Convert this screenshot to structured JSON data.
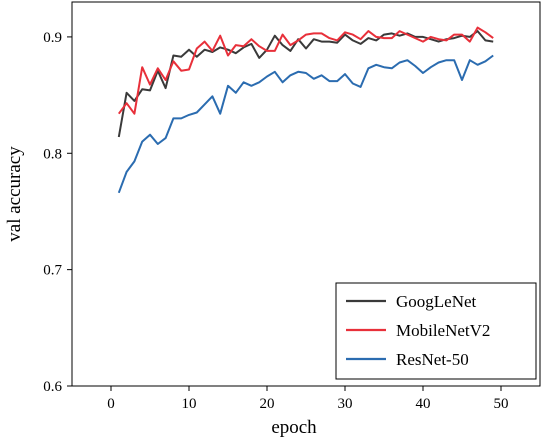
{
  "chart_data": {
    "type": "line",
    "title": "",
    "xlabel": "epoch",
    "ylabel": "val accuracy",
    "xlim": [
      -5,
      55
    ],
    "ylim": [
      0.6,
      0.93
    ],
    "xticks": [
      0,
      10,
      20,
      30,
      40,
      50
    ],
    "yticks": [
      0.6,
      0.7,
      0.8,
      0.9
    ],
    "ytick_labels": [
      "0.6",
      "0.7",
      "0.8",
      "0.9"
    ],
    "grid": false,
    "legend_position": "bottom-right",
    "x": [
      1,
      2,
      3,
      4,
      5,
      6,
      7,
      8,
      9,
      10,
      11,
      12,
      13,
      14,
      15,
      16,
      17,
      18,
      19,
      20,
      21,
      22,
      23,
      24,
      25,
      26,
      27,
      28,
      29,
      30,
      31,
      32,
      33,
      34,
      35,
      36,
      37,
      38,
      39,
      40,
      41,
      42,
      43,
      44,
      45,
      46,
      47,
      48,
      49
    ],
    "series": [
      {
        "name": "GoogLeNet",
        "color": "#3a3a3a",
        "values": [
          0.814,
          0.852,
          0.845,
          0.855,
          0.854,
          0.871,
          0.856,
          0.884,
          0.883,
          0.889,
          0.883,
          0.889,
          0.887,
          0.891,
          0.889,
          0.886,
          0.891,
          0.894,
          0.882,
          0.889,
          0.901,
          0.893,
          0.888,
          0.898,
          0.89,
          0.898,
          0.896,
          0.896,
          0.895,
          0.902,
          0.897,
          0.894,
          0.899,
          0.897,
          0.902,
          0.903,
          0.901,
          0.903,
          0.9,
          0.9,
          0.898,
          0.896,
          0.898,
          0.899,
          0.901,
          0.9,
          0.905,
          0.897,
          0.896
        ]
      },
      {
        "name": "MobileNetV2",
        "color": "#e8303a",
        "values": [
          0.834,
          0.843,
          0.834,
          0.874,
          0.859,
          0.873,
          0.863,
          0.879,
          0.871,
          0.872,
          0.89,
          0.896,
          0.888,
          0.901,
          0.884,
          0.893,
          0.892,
          0.898,
          0.892,
          0.888,
          0.888,
          0.902,
          0.893,
          0.897,
          0.902,
          0.903,
          0.903,
          0.899,
          0.897,
          0.904,
          0.902,
          0.898,
          0.905,
          0.9,
          0.899,
          0.899,
          0.905,
          0.902,
          0.899,
          0.896,
          0.9,
          0.898,
          0.897,
          0.902,
          0.902,
          0.896,
          0.908,
          0.904,
          0.899
        ]
      },
      {
        "name": "ResNet-50",
        "color": "#2b6cb0",
        "values": [
          0.766,
          0.784,
          0.793,
          0.81,
          0.816,
          0.808,
          0.813,
          0.83,
          0.83,
          0.833,
          0.835,
          0.842,
          0.849,
          0.834,
          0.858,
          0.852,
          0.861,
          0.858,
          0.861,
          0.866,
          0.87,
          0.861,
          0.867,
          0.87,
          0.869,
          0.864,
          0.867,
          0.862,
          0.862,
          0.868,
          0.86,
          0.857,
          0.873,
          0.876,
          0.874,
          0.873,
          0.878,
          0.88,
          0.875,
          0.869,
          0.874,
          0.878,
          0.88,
          0.88,
          0.863,
          0.88,
          0.876,
          0.879,
          0.884
        ]
      }
    ]
  }
}
